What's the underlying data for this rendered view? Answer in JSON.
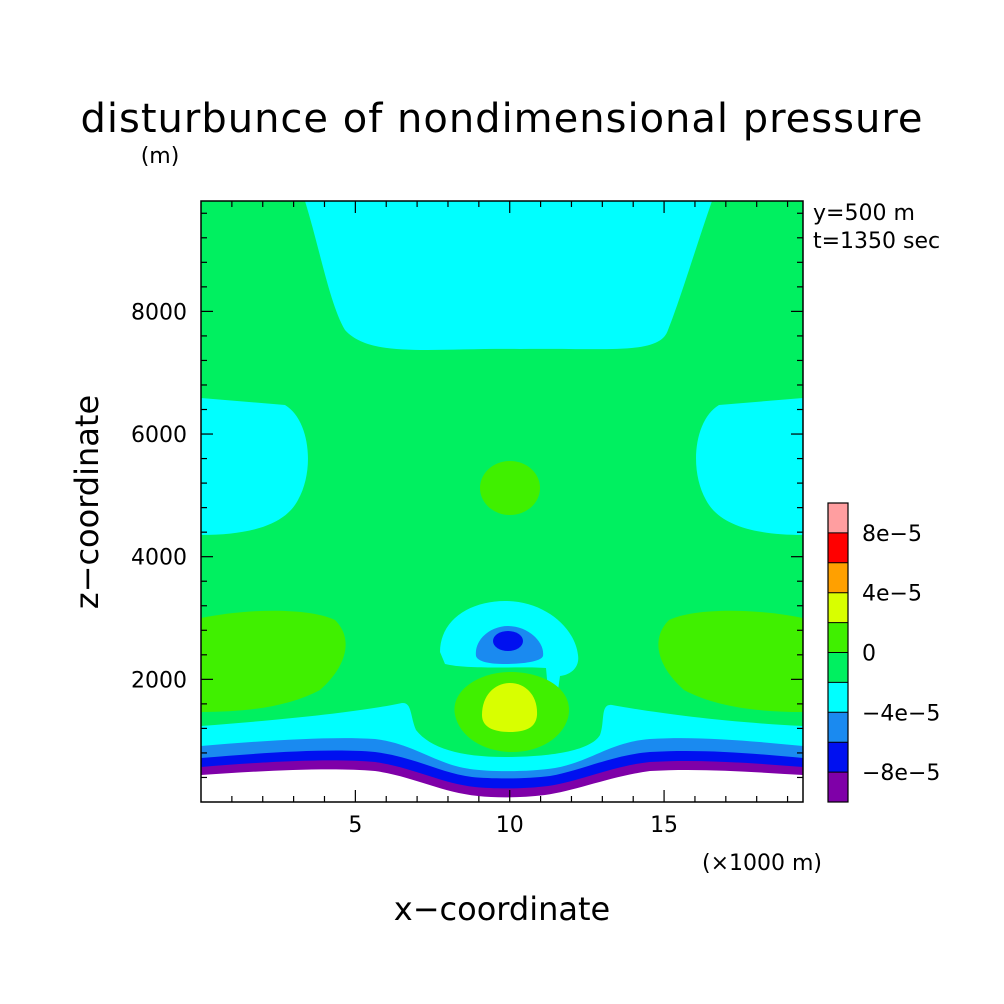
{
  "chart_data": {
    "type": "heatmap",
    "title": "disturbunce of nondimensional pressure",
    "ylabel": "z−coordinate",
    "yunit": "(m)",
    "xlabel": "x−coordinate",
    "xunit": "(×1000 m)",
    "annotations": [
      "y=500 m",
      "t=1350 sec"
    ],
    "xlim": [
      0,
      19.5
    ],
    "ylim": [
      0,
      9800
    ],
    "xticks": [
      5,
      10,
      15
    ],
    "xtick_labels": [
      "5",
      "10",
      "15"
    ],
    "yticks": [
      2000,
      4000,
      6000,
      8000
    ],
    "ytick_labels": [
      "2000",
      "4000",
      "6000",
      "8000"
    ],
    "terrain": {
      "description": "bell-shaped valley, lowest at x=10",
      "base_height": 380,
      "center_height": 220,
      "center_x": 10,
      "half_width": 5
    },
    "colorbar": {
      "levels": [
        -0.0001,
        -8e-05,
        -6e-05,
        -4e-05,
        -2e-05,
        0,
        2e-05,
        4e-05,
        6e-05,
        8e-05,
        0.0001
      ],
      "colors": [
        "#7f00a8",
        "#0010f0",
        "#1a8af0",
        "#00ffff",
        "#00f060",
        "#40f000",
        "#d8ff00",
        "#ffa000",
        "#ff0000",
        "#ff9ea0"
      ],
      "tick_values": [
        -8e-05,
        -4e-05,
        0,
        4e-05,
        8e-05
      ],
      "tick_labels": [
        "−8e−5",
        "−4e−5",
        "0",
        "4e−5",
        "8e−5"
      ]
    },
    "fields": {
      "background_value": 0,
      "regions": [
        {
          "name": "upper cyan basin",
          "value": -3e-05,
          "x_range": [
            3.5,
            16.5
          ],
          "z_range": [
            7350,
            9800
          ]
        },
        {
          "name": "left cyan lobe",
          "value": -3e-05,
          "x_range": [
            0,
            3.6
          ],
          "z_range": [
            4500,
            6700
          ]
        },
        {
          "name": "right cyan lobe",
          "value": -3e-05,
          "x_range": [
            16.4,
            19.5
          ],
          "z_range": [
            4500,
            6700
          ]
        },
        {
          "name": "mid-level positive bubble",
          "value": 1e-05,
          "x": 10.2,
          "z": 5200
        },
        {
          "name": "left low-level positive lobe",
          "value": 1e-05,
          "x_range": [
            0,
            4.7
          ],
          "z_range": [
            1500,
            3200
          ]
        },
        {
          "name": "right low-level positive lobe",
          "value": 1e-05,
          "x_range": [
            15.3,
            19.5
          ],
          "z_range": [
            1500,
            3200
          ]
        },
        {
          "name": "central negative cell",
          "value": -9e-05,
          "x": 10.0,
          "z": 2700
        },
        {
          "name": "central positive cell",
          "value": 5e-05,
          "x": 10.1,
          "z": 1500
        },
        {
          "name": "near-surface negative layers",
          "value": -0.0001,
          "z_range": [
            380,
            1350
          ]
        }
      ]
    }
  }
}
